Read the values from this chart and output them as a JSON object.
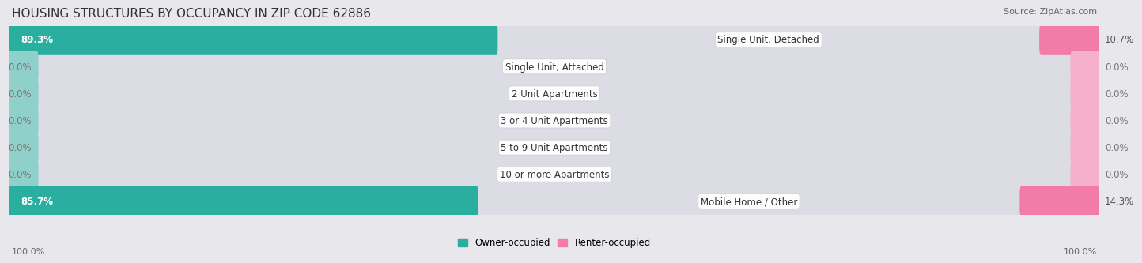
{
  "title": "HOUSING STRUCTURES BY OCCUPANCY IN ZIP CODE 62886",
  "source": "Source: ZipAtlas.com",
  "categories": [
    "Single Unit, Detached",
    "Single Unit, Attached",
    "2 Unit Apartments",
    "3 or 4 Unit Apartments",
    "5 to 9 Unit Apartments",
    "10 or more Apartments",
    "Mobile Home / Other"
  ],
  "owner_pct": [
    89.3,
    0.0,
    0.0,
    0.0,
    0.0,
    0.0,
    85.7
  ],
  "renter_pct": [
    10.7,
    0.0,
    0.0,
    0.0,
    0.0,
    0.0,
    14.3
  ],
  "owner_color": "#2AAEA0",
  "renter_color": "#F27BA8",
  "owner_stub_color": "#8FD0CA",
  "renter_stub_color": "#F5B0CA",
  "background_color": "#E8E8EC",
  "row_bg_color": "#F4F4F6",
  "bar_track_color": "#DCDCE4",
  "title_fontsize": 11,
  "source_fontsize": 8,
  "label_fontsize": 8.5,
  "category_fontsize": 8.5,
  "axis_label_fontsize": 8,
  "max_val": 100.0,
  "stub_size": 5.0
}
